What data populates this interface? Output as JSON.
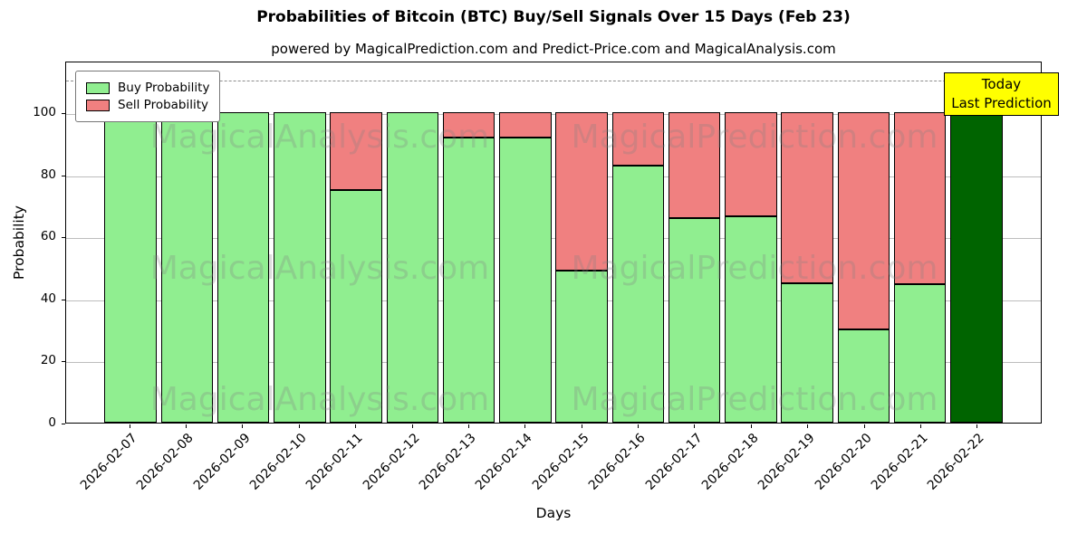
{
  "chart_data": {
    "type": "bar",
    "stacked": true,
    "title": "Probabilities of Bitcoin (BTC) Buy/Sell Signals Over 15 Days (Feb 23)",
    "subtitle": "powered by MagicalPrediction.com and Predict-Price.com and MagicalAnalysis.com",
    "xlabel": "Days",
    "ylabel": "Probability",
    "ylim": [
      0,
      116.7
    ],
    "yticks": [
      0,
      20,
      40,
      60,
      80,
      100
    ],
    "grid": true,
    "dashed_line_y": 111,
    "categories": [
      "2026-02-07",
      "2026-02-08",
      "2026-02-09",
      "2026-02-10",
      "2026-02-11",
      "2026-02-12",
      "2026-02-13",
      "2026-02-14",
      "2026-02-15",
      "2026-02-16",
      "2026-02-17",
      "2026-02-18",
      "2026-02-19",
      "2026-02-20",
      "2026-02-21",
      "2026-02-22"
    ],
    "series": [
      {
        "name": "Buy Probability",
        "color": "#90EE90",
        "values": [
          100,
          100,
          100,
          100,
          75,
          100,
          92,
          92,
          49,
          83,
          66,
          66.5,
          45,
          30,
          44.5,
          100
        ]
      },
      {
        "name": "Sell Probability",
        "color": "#F08080",
        "values": [
          0,
          0,
          0,
          0,
          25,
          0,
          8,
          8,
          51,
          17,
          34,
          33.5,
          55,
          70,
          55.5,
          0
        ]
      }
    ],
    "highlight_bar": {
      "index": 15,
      "color": "#006400",
      "label": "2026-02-22"
    },
    "legend": {
      "position": "upper left"
    },
    "annotation_box": {
      "lines": [
        "Today",
        "Last Prediction"
      ],
      "bg_color": "#FFFF00"
    },
    "watermarks": [
      "MagicalAnalysis.com",
      "MagicalPrediction.com"
    ],
    "colors": {
      "grid": "#bdbdbd",
      "dashed_line": "#8c8c8c",
      "bar_edge": "#000000"
    }
  }
}
